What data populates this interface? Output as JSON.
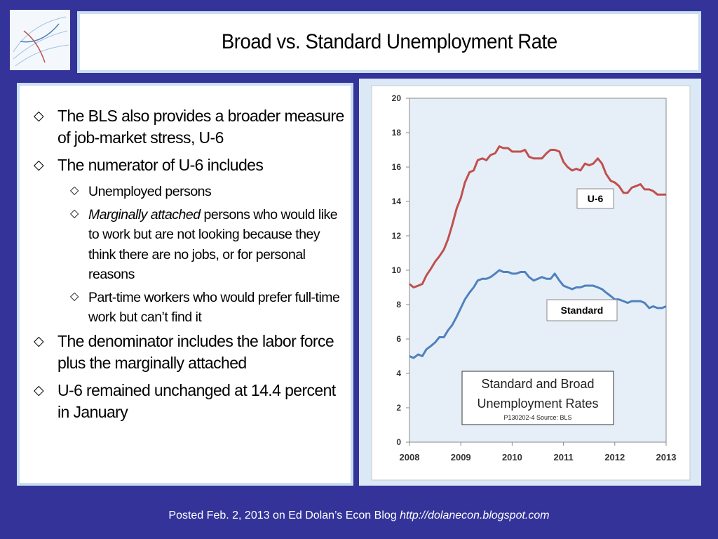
{
  "header": {
    "title": "Broad vs. Standard Unemployment Rate"
  },
  "bullets": [
    {
      "level": 1,
      "text": "The BLS also provides a broader measure of job-market stress, U-6"
    },
    {
      "level": 1,
      "text": "The numerator of U-6 includes"
    },
    {
      "level": 2,
      "text": "Unemployed persons"
    },
    {
      "level": 2,
      "emphasis": "Marginally attached",
      "text": " persons who would like to work but are not looking because they think there are no jobs, or for personal reasons"
    },
    {
      "level": 2,
      "text": "Part-time workers who would prefer full-time work but can’t find it"
    },
    {
      "level": 1,
      "text": "The denominator includes the labor force plus the marginally attached"
    },
    {
      "level": 1,
      "text": "U-6 remained unchanged at 14.4 percent in January"
    }
  ],
  "chart_data": {
    "type": "line",
    "annotations": [
      "U-6",
      "Standard"
    ],
    "chart_title": [
      "Standard and Broad",
      "Unemployment Rates"
    ],
    "source": "P130202-4 Source: BLS",
    "x": [
      2008,
      2008.08,
      2008.17,
      2008.25,
      2008.33,
      2008.42,
      2008.5,
      2008.58,
      2008.67,
      2008.75,
      2008.83,
      2008.92,
      2009,
      2009.08,
      2009.17,
      2009.25,
      2009.33,
      2009.42,
      2009.5,
      2009.58,
      2009.67,
      2009.75,
      2009.83,
      2009.92,
      2010,
      2010.08,
      2010.17,
      2010.25,
      2010.33,
      2010.42,
      2010.5,
      2010.58,
      2010.67,
      2010.75,
      2010.83,
      2010.92,
      2011,
      2011.08,
      2011.17,
      2011.25,
      2011.33,
      2011.42,
      2011.5,
      2011.58,
      2011.67,
      2011.75,
      2011.83,
      2011.92,
      2012,
      2012.08,
      2012.17,
      2012.25,
      2012.33,
      2012.42,
      2012.5,
      2012.58,
      2012.67,
      2012.75,
      2012.83,
      2012.92,
      2013
    ],
    "series": [
      {
        "name": "U-6",
        "color": "#c0504d",
        "values": [
          9.2,
          9.0,
          9.1,
          9.2,
          9.7,
          10.1,
          10.5,
          10.8,
          11.2,
          11.8,
          12.6,
          13.6,
          14.2,
          15.1,
          15.7,
          15.8,
          16.4,
          16.5,
          16.4,
          16.7,
          16.8,
          17.2,
          17.1,
          17.1,
          16.9,
          16.9,
          16.9,
          17.0,
          16.6,
          16.5,
          16.5,
          16.5,
          16.8,
          17.0,
          17.0,
          16.9,
          16.3,
          16.0,
          15.8,
          15.9,
          15.8,
          16.2,
          16.1,
          16.2,
          16.5,
          16.2,
          15.6,
          15.2,
          15.1,
          14.9,
          14.5,
          14.5,
          14.8,
          14.9,
          15.0,
          14.7,
          14.7,
          14.6,
          14.4,
          14.4,
          14.4
        ]
      },
      {
        "name": "Standard",
        "color": "#4f81bd",
        "values": [
          5.0,
          4.9,
          5.1,
          5.0,
          5.4,
          5.6,
          5.8,
          6.1,
          6.1,
          6.5,
          6.8,
          7.3,
          7.8,
          8.3,
          8.7,
          9.0,
          9.4,
          9.5,
          9.5,
          9.6,
          9.8,
          10.0,
          9.9,
          9.9,
          9.8,
          9.8,
          9.9,
          9.9,
          9.6,
          9.4,
          9.5,
          9.6,
          9.5,
          9.5,
          9.8,
          9.4,
          9.1,
          9.0,
          8.9,
          9.0,
          9.0,
          9.1,
          9.1,
          9.1,
          9.0,
          8.9,
          8.7,
          8.5,
          8.3,
          8.3,
          8.2,
          8.1,
          8.2,
          8.2,
          8.2,
          8.1,
          7.8,
          7.9,
          7.8,
          7.8,
          7.9
        ]
      }
    ],
    "xlim": [
      2008,
      2013
    ],
    "xticks": [
      2008,
      2009,
      2010,
      2011,
      2012,
      2013
    ],
    "ylim": [
      0,
      20
    ],
    "yticks": [
      0,
      2,
      4,
      6,
      8,
      10,
      12,
      14,
      16,
      18,
      20
    ],
    "grid": false
  },
  "footer": {
    "text": "Posted Feb. 2, 2013 on Ed Dolan’s Econ Blog ",
    "link": "http://dolanecon.blogspot.com"
  }
}
